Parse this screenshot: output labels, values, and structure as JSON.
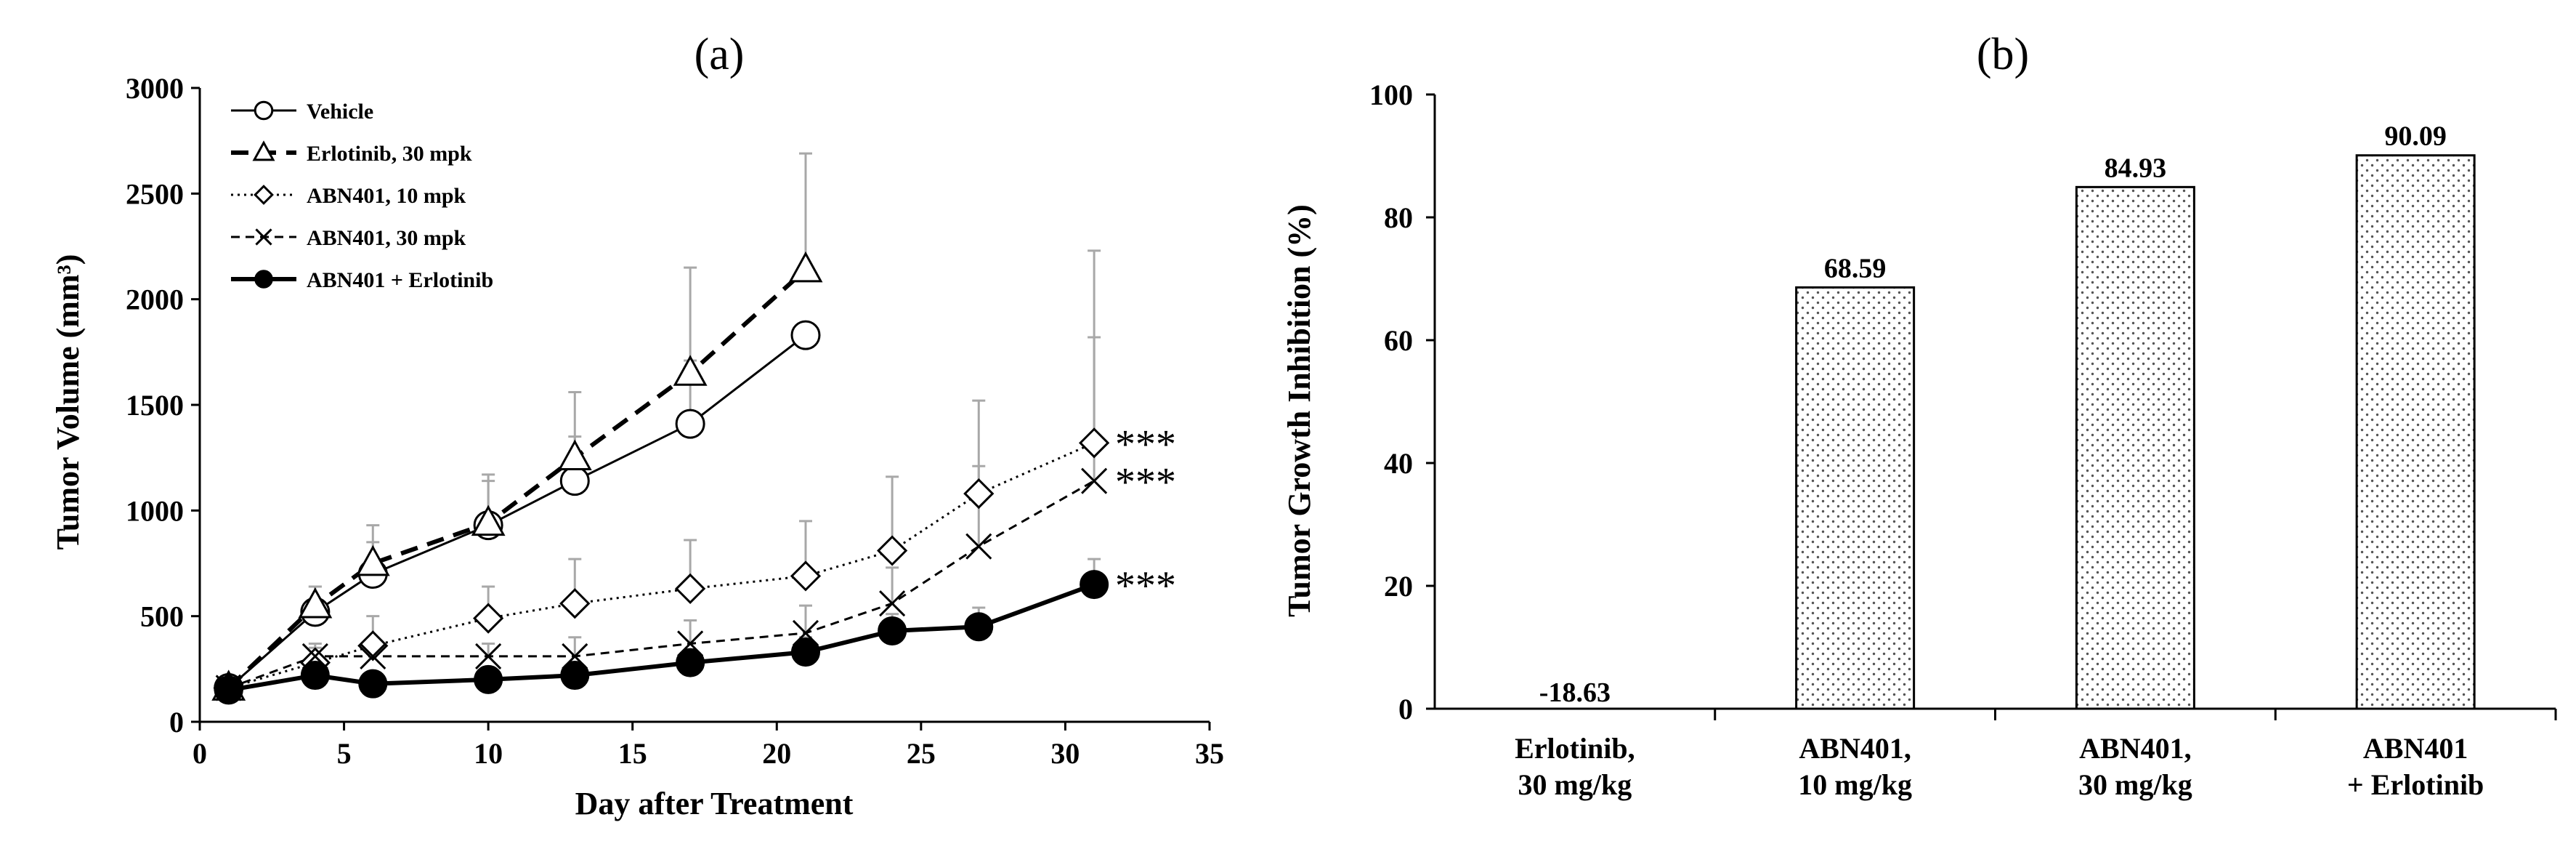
{
  "chart_data": [
    {
      "type": "line",
      "panel": "(a)",
      "xlabel": "Day after Treatment",
      "ylabel": "Tumor Volume (mm³)",
      "xlim": [
        0,
        35
      ],
      "ylim": [
        0,
        3000
      ],
      "xticks": [
        0,
        5,
        10,
        15,
        20,
        25,
        30,
        35
      ],
      "yticks": [
        0,
        500,
        1000,
        1500,
        2000,
        2500,
        3000
      ],
      "legend_position": "top-left",
      "series": [
        {
          "name": "Vehicle",
          "marker": "open-circle",
          "line": "solid",
          "x": [
            1,
            4,
            6,
            10,
            13,
            17,
            21
          ],
          "y": [
            160,
            520,
            700,
            930,
            1140,
            1410,
            1830
          ],
          "err": [
            0,
            120,
            150,
            210,
            210,
            300,
            0
          ]
        },
        {
          "name": "Erlotinib, 30 mpk",
          "marker": "open-triangle",
          "line": "dashed-bold",
          "x": [
            1,
            4,
            6,
            10,
            13,
            17,
            21
          ],
          "y": [
            160,
            550,
            750,
            940,
            1250,
            1650,
            2140
          ],
          "err": [
            0,
            90,
            180,
            230,
            310,
            500,
            550
          ]
        },
        {
          "name": "ABN401, 10 mpk",
          "marker": "open-diamond",
          "line": "dotted",
          "x": [
            1,
            4,
            6,
            10,
            13,
            17,
            21,
            24,
            27,
            31
          ],
          "y": [
            160,
            280,
            360,
            490,
            560,
            630,
            690,
            810,
            1080,
            1320
          ],
          "err": [
            0,
            90,
            140,
            150,
            210,
            230,
            260,
            350,
            440,
            910
          ]
        },
        {
          "name": "ABN401, 30 mpk",
          "marker": "x-cross",
          "line": "dashed-fine",
          "x": [
            1,
            4,
            6,
            10,
            13,
            17,
            21,
            24,
            27,
            31
          ],
          "y": [
            160,
            310,
            310,
            310,
            310,
            370,
            420,
            560,
            830,
            1140
          ],
          "err": [
            0,
            40,
            50,
            60,
            90,
            110,
            130,
            170,
            380,
            680
          ]
        },
        {
          "name": "ABN401 + Erlotinib",
          "marker": "filled-circle",
          "line": "solid-bold",
          "x": [
            1,
            4,
            6,
            10,
            13,
            17,
            21,
            24,
            27,
            31
          ],
          "y": [
            150,
            220,
            180,
            200,
            220,
            280,
            330,
            430,
            450,
            650
          ],
          "err": [
            0,
            40,
            30,
            40,
            50,
            60,
            70,
            80,
            90,
            120
          ]
        }
      ],
      "annotations": [
        {
          "text": "***",
          "series": "ABN401, 10 mpk"
        },
        {
          "text": "***",
          "series": "ABN401, 30 mpk"
        },
        {
          "text": "***",
          "series": "ABN401 + Erlotinib"
        }
      ]
    },
    {
      "type": "bar",
      "panel": "(b)",
      "ylabel": "Tumor Growth Inhibition (%)",
      "xlabel": "",
      "ylim": [
        0,
        100
      ],
      "yticks": [
        0,
        20,
        40,
        60,
        80,
        100
      ],
      "bar_fill": "dotted-pattern",
      "categories": [
        [
          "Erlotinib,",
          "30 mg/kg"
        ],
        [
          "ABN401,",
          "10 mg/kg"
        ],
        [
          "ABN401,",
          "30 mg/kg"
        ],
        [
          "ABN401",
          "+ Erlotinib"
        ]
      ],
      "values": [
        -18.63,
        68.59,
        84.93,
        90.09
      ],
      "data_labels": [
        "-18.63",
        "68.59",
        "84.93",
        "90.09"
      ]
    }
  ]
}
